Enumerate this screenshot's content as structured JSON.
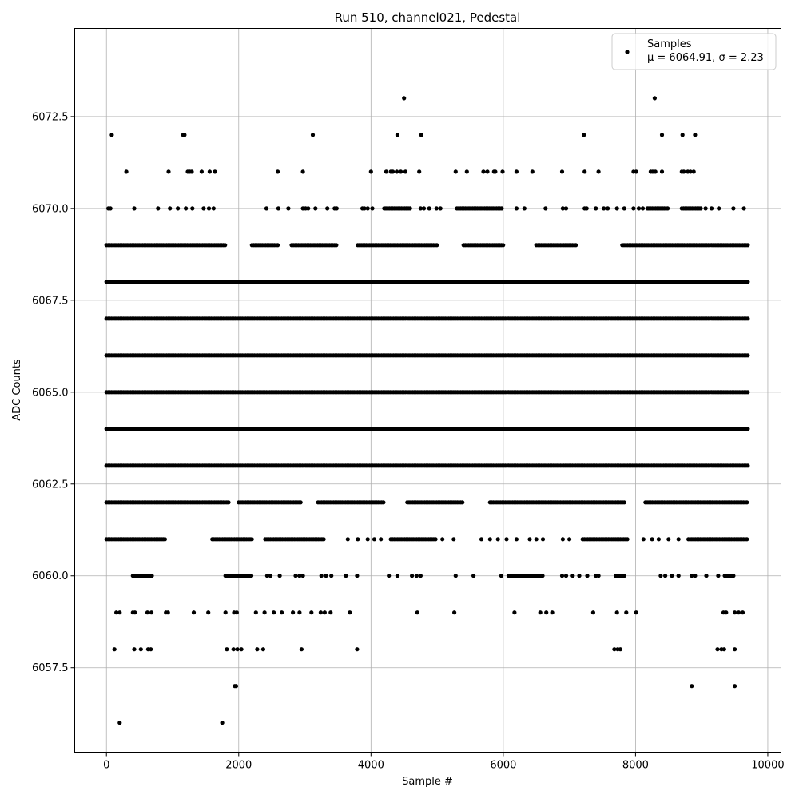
{
  "chart_data": {
    "type": "scatter",
    "title": "Run 510, channel021, Pedestal",
    "xlabel": "Sample #",
    "ylabel": "ADC Counts",
    "xlim": [
      -480,
      10200
    ],
    "ylim": [
      6055.2,
      6074.9
    ],
    "xticks": [
      0,
      2000,
      4000,
      6000,
      8000,
      10000
    ],
    "yticks": [
      6057.5,
      6060.0,
      6062.5,
      6065.0,
      6067.5,
      6070.0,
      6072.5
    ],
    "xtick_labels": [
      "0",
      "2000",
      "4000",
      "6000",
      "8000",
      "10000"
    ],
    "ytick_labels": [
      "6057.5",
      "6060.0",
      "6062.5",
      "6065.0",
      "6067.5",
      "6070.0",
      "6072.5"
    ],
    "grid": true,
    "legend_position": "top-right",
    "marker_color": "#000000",
    "series": [
      {
        "name": "Samples",
        "stats_label": "μ = 6064.91, σ = 2.23",
        "x_range": [
          0,
          9720
        ],
        "dense_levels": [
          {
            "y": 6063,
            "segments": [
              [
                0,
                9720
              ]
            ]
          },
          {
            "y": 6064,
            "segments": [
              [
                0,
                9720
              ]
            ]
          },
          {
            "y": 6065,
            "segments": [
              [
                0,
                9720
              ]
            ]
          },
          {
            "y": 6066,
            "segments": [
              [
                0,
                9720
              ]
            ]
          },
          {
            "y": 6067,
            "segments": [
              [
                0,
                9720
              ]
            ]
          },
          {
            "y": 6068,
            "segments": [
              [
                0,
                9720
              ]
            ]
          },
          {
            "y": 6062,
            "segments": [
              [
                0,
                1850
              ],
              [
                2000,
                2950
              ],
              [
                3200,
                4200
              ],
              [
                4550,
                5400
              ],
              [
                5800,
                7850
              ],
              [
                8150,
                9700
              ]
            ]
          },
          {
            "y": 6069,
            "segments": [
              [
                0,
                1800
              ],
              [
                2200,
                2600
              ],
              [
                2800,
                3500
              ],
              [
                3800,
                5000
              ],
              [
                5400,
                6000
              ],
              [
                6500,
                7100
              ],
              [
                7800,
                9720
              ]
            ]
          },
          {
            "y": 6061,
            "segments": [
              [
                0,
                900
              ],
              [
                1600,
                2200
              ],
              [
                2400,
                3300
              ],
              [
                4300,
                5000
              ],
              [
                7200,
                7900
              ],
              [
                8800,
                9700
              ]
            ]
          },
          {
            "y": 6070,
            "segments": [
              [
                4200,
                4600
              ],
              [
                5300,
                6000
              ],
              [
                8200,
                8500
              ],
              [
                8700,
                9000
              ]
            ]
          },
          {
            "y": 6060,
            "segments": [
              [
                400,
                700
              ],
              [
                1800,
                2200
              ],
              [
                6100,
                6600
              ],
              [
                7700,
                7850
              ],
              [
                9350,
                9500
              ]
            ]
          }
        ],
        "sparse_points": [
          [
            80,
            6072
          ],
          [
            300,
            6071
          ],
          [
            200,
            6056
          ],
          [
            120,
            6058
          ],
          [
            420,
            6058
          ],
          [
            520,
            6058
          ],
          [
            630,
            6058
          ],
          [
            670,
            6058
          ],
          [
            150,
            6059
          ],
          [
            200,
            6059
          ],
          [
            400,
            6059
          ],
          [
            430,
            6059
          ],
          [
            620,
            6059
          ],
          [
            680,
            6059
          ],
          [
            900,
            6059
          ],
          [
            930,
            6059
          ],
          [
            1160,
            6072
          ],
          [
            1180,
            6072
          ],
          [
            940,
            6071
          ],
          [
            1230,
            6071
          ],
          [
            1260,
            6071
          ],
          [
            1290,
            6071
          ],
          [
            1440,
            6071
          ],
          [
            1560,
            6071
          ],
          [
            1640,
            6071
          ],
          [
            30,
            6070
          ],
          [
            60,
            6070
          ],
          [
            420,
            6070
          ],
          [
            780,
            6070
          ],
          [
            960,
            6070
          ],
          [
            1080,
            6070
          ],
          [
            1200,
            6070
          ],
          [
            1300,
            6070
          ],
          [
            1470,
            6070
          ],
          [
            1550,
            6070
          ],
          [
            1620,
            6070
          ],
          [
            1320,
            6059
          ],
          [
            1540,
            6059
          ],
          [
            1800,
            6059
          ],
          [
            1930,
            6059
          ],
          [
            1970,
            6059
          ],
          [
            1940,
            6057
          ],
          [
            1960,
            6057
          ],
          [
            1750,
            6056
          ],
          [
            1820,
            6058
          ],
          [
            1920,
            6058
          ],
          [
            1980,
            6058
          ],
          [
            2040,
            6058
          ],
          [
            2280,
            6058
          ],
          [
            2370,
            6058
          ],
          [
            2950,
            6058
          ],
          [
            3790,
            6058
          ],
          [
            2260,
            6059
          ],
          [
            2390,
            6059
          ],
          [
            2530,
            6059
          ],
          [
            2650,
            6059
          ],
          [
            2820,
            6059
          ],
          [
            2920,
            6059
          ],
          [
            3100,
            6059
          ],
          [
            3240,
            6059
          ],
          [
            3300,
            6059
          ],
          [
            3390,
            6059
          ],
          [
            3680,
            6059
          ],
          [
            3120,
            6072
          ],
          [
            2590,
            6071
          ],
          [
            2970,
            6071
          ],
          [
            2420,
            6070
          ],
          [
            2600,
            6070
          ],
          [
            2750,
            6070
          ],
          [
            2970,
            6070
          ],
          [
            3010,
            6070
          ],
          [
            3050,
            6070
          ],
          [
            3160,
            6070
          ],
          [
            3340,
            6070
          ],
          [
            3450,
            6070
          ],
          [
            3480,
            6070
          ],
          [
            2430,
            6060
          ],
          [
            2480,
            6060
          ],
          [
            2620,
            6060
          ],
          [
            2860,
            6060
          ],
          [
            2920,
            6060
          ],
          [
            2970,
            6060
          ],
          [
            3250,
            6060
          ],
          [
            3320,
            6060
          ],
          [
            3400,
            6060
          ],
          [
            3620,
            6060
          ],
          [
            3790,
            6060
          ],
          [
            3650,
            6061
          ],
          [
            3800,
            6061
          ],
          [
            3950,
            6061
          ],
          [
            4050,
            6061
          ],
          [
            4150,
            6061
          ],
          [
            4500,
            6073
          ],
          [
            4400,
            6072
          ],
          [
            4760,
            6072
          ],
          [
            4000,
            6071
          ],
          [
            4230,
            6071
          ],
          [
            4300,
            6071
          ],
          [
            4330,
            6071
          ],
          [
            4390,
            6071
          ],
          [
            4450,
            6071
          ],
          [
            4520,
            6071
          ],
          [
            4730,
            6071
          ],
          [
            3870,
            6070
          ],
          [
            3900,
            6070
          ],
          [
            3950,
            6070
          ],
          [
            4020,
            6070
          ],
          [
            4750,
            6070
          ],
          [
            4800,
            6070
          ],
          [
            4880,
            6070
          ],
          [
            4990,
            6070
          ],
          [
            5050,
            6070
          ],
          [
            4270,
            6060
          ],
          [
            4400,
            6060
          ],
          [
            4620,
            6060
          ],
          [
            4690,
            6060
          ],
          [
            4750,
            6060
          ],
          [
            5280,
            6060
          ],
          [
            5550,
            6060
          ],
          [
            5970,
            6060
          ],
          [
            6080,
            6060
          ],
          [
            4700,
            6059
          ],
          [
            5260,
            6059
          ],
          [
            6170,
            6059
          ],
          [
            6560,
            6059
          ],
          [
            6650,
            6059
          ],
          [
            6740,
            6059
          ],
          [
            7360,
            6059
          ],
          [
            7720,
            6059
          ],
          [
            7860,
            6059
          ],
          [
            8010,
            6059
          ],
          [
            5280,
            6071
          ],
          [
            5450,
            6071
          ],
          [
            5700,
            6071
          ],
          [
            5760,
            6071
          ],
          [
            5860,
            6071
          ],
          [
            5880,
            6071
          ],
          [
            5990,
            6071
          ],
          [
            6200,
            6071
          ],
          [
            6440,
            6071
          ],
          [
            5080,
            6061
          ],
          [
            5250,
            6061
          ],
          [
            5670,
            6061
          ],
          [
            5800,
            6061
          ],
          [
            5920,
            6061
          ],
          [
            6050,
            6061
          ],
          [
            6200,
            6061
          ],
          [
            6400,
            6061
          ],
          [
            6500,
            6061
          ],
          [
            6600,
            6061
          ],
          [
            6900,
            6061
          ],
          [
            7000,
            6061
          ],
          [
            6200,
            6070
          ],
          [
            6320,
            6070
          ],
          [
            6640,
            6070
          ],
          [
            6900,
            6070
          ],
          [
            6950,
            6070
          ],
          [
            7230,
            6070
          ],
          [
            7260,
            6070
          ],
          [
            7400,
            6070
          ],
          [
            7520,
            6070
          ],
          [
            7580,
            6070
          ],
          [
            7720,
            6070
          ],
          [
            7830,
            6070
          ],
          [
            7970,
            6070
          ],
          [
            8050,
            6070
          ],
          [
            8110,
            6070
          ],
          [
            8180,
            6070
          ],
          [
            7220,
            6072
          ],
          [
            6890,
            6071
          ],
          [
            7230,
            6071
          ],
          [
            7440,
            6071
          ],
          [
            7970,
            6071
          ],
          [
            8010,
            6071
          ],
          [
            8230,
            6071
          ],
          [
            8260,
            6071
          ],
          [
            8300,
            6071
          ],
          [
            8400,
            6071
          ],
          [
            8290,
            6073
          ],
          [
            8400,
            6072
          ],
          [
            8710,
            6072
          ],
          [
            8900,
            6072
          ],
          [
            8700,
            6071
          ],
          [
            8730,
            6071
          ],
          [
            8790,
            6071
          ],
          [
            8830,
            6071
          ],
          [
            8880,
            6071
          ],
          [
            9060,
            6070
          ],
          [
            9150,
            6070
          ],
          [
            9260,
            6070
          ],
          [
            9480,
            6070
          ],
          [
            9640,
            6070
          ],
          [
            6890,
            6060
          ],
          [
            6950,
            6060
          ],
          [
            7050,
            6060
          ],
          [
            7150,
            6060
          ],
          [
            7270,
            6060
          ],
          [
            7400,
            6060
          ],
          [
            7440,
            6060
          ],
          [
            7700,
            6060
          ],
          [
            8120,
            6061
          ],
          [
            8250,
            6061
          ],
          [
            8350,
            6061
          ],
          [
            8500,
            6061
          ],
          [
            8650,
            6061
          ],
          [
            8380,
            6060
          ],
          [
            8450,
            6060
          ],
          [
            8550,
            6060
          ],
          [
            8650,
            6060
          ],
          [
            8850,
            6060
          ],
          [
            8900,
            6060
          ],
          [
            9070,
            6060
          ],
          [
            9250,
            6060
          ],
          [
            7680,
            6058
          ],
          [
            7730,
            6058
          ],
          [
            7770,
            6058
          ],
          [
            9240,
            6058
          ],
          [
            9300,
            6058
          ],
          [
            9340,
            6058
          ],
          [
            9500,
            6058
          ],
          [
            9330,
            6059
          ],
          [
            9370,
            6059
          ],
          [
            9500,
            6059
          ],
          [
            9560,
            6059
          ],
          [
            9620,
            6059
          ],
          [
            8850,
            6057
          ],
          [
            9500,
            6057
          ]
        ]
      }
    ]
  }
}
